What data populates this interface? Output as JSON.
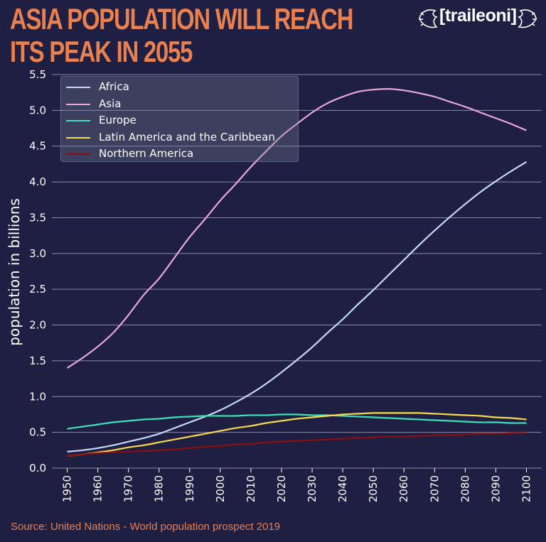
{
  "title": "ASIA POPULATION WILL REACH ITS PEAK IN 2055",
  "logo_text": "[traileoni]",
  "source": "Source: United Nations - World population prospect 2019",
  "colors": {
    "background": "#1e1f43",
    "title": "#e8804f",
    "grid": "#8a8ba6",
    "text": "#ffffff"
  },
  "chart_data": {
    "type": "line",
    "ylabel": "population in billions",
    "xlabel": "",
    "ylim": [
      0,
      5.5
    ],
    "xlim": [
      1945,
      2105
    ],
    "legend_position": "top-left",
    "grid": "horizontal",
    "x_ticks": [
      1950,
      1960,
      1970,
      1980,
      1990,
      2000,
      2010,
      2020,
      2030,
      2040,
      2050,
      2060,
      2070,
      2080,
      2090,
      2100
    ],
    "y_ticks": [
      "0.0",
      "0.5",
      "1.0",
      "1.5",
      "2.0",
      "2.5",
      "3.0",
      "3.5",
      "4.0",
      "4.5",
      "5.0",
      "5.5"
    ],
    "x": [
      1950,
      1955,
      1960,
      1965,
      1970,
      1975,
      1980,
      1985,
      1990,
      1995,
      2000,
      2005,
      2010,
      2015,
      2020,
      2025,
      2030,
      2035,
      2040,
      2045,
      2050,
      2055,
      2060,
      2065,
      2070,
      2075,
      2080,
      2085,
      2090,
      2095,
      2100
    ],
    "series": [
      {
        "name": "Africa",
        "color": "#c6d8f5",
        "values": [
          0.23,
          0.25,
          0.28,
          0.32,
          0.37,
          0.42,
          0.48,
          0.56,
          0.64,
          0.72,
          0.81,
          0.92,
          1.04,
          1.18,
          1.34,
          1.51,
          1.69,
          1.89,
          2.08,
          2.29,
          2.49,
          2.7,
          2.91,
          3.12,
          3.32,
          3.51,
          3.69,
          3.86,
          4.01,
          4.15,
          4.28
        ]
      },
      {
        "name": "Asia",
        "color": "#e8a8d8",
        "values": [
          1.4,
          1.54,
          1.7,
          1.89,
          2.14,
          2.42,
          2.65,
          2.94,
          3.23,
          3.48,
          3.74,
          3.97,
          4.21,
          4.43,
          4.64,
          4.81,
          4.97,
          5.1,
          5.19,
          5.26,
          5.29,
          5.3,
          5.28,
          5.24,
          5.19,
          5.12,
          5.05,
          4.97,
          4.89,
          4.81,
          4.72
        ]
      },
      {
        "name": "Europe",
        "color": "#3de0b8",
        "values": [
          0.55,
          0.58,
          0.61,
          0.64,
          0.66,
          0.68,
          0.69,
          0.71,
          0.72,
          0.73,
          0.73,
          0.73,
          0.74,
          0.74,
          0.75,
          0.75,
          0.74,
          0.74,
          0.73,
          0.72,
          0.71,
          0.7,
          0.69,
          0.68,
          0.67,
          0.66,
          0.65,
          0.64,
          0.64,
          0.63,
          0.63
        ]
      },
      {
        "name": "Latin America and the Caribbean",
        "color": "#f7d94c",
        "values": [
          0.17,
          0.19,
          0.22,
          0.25,
          0.29,
          0.32,
          0.36,
          0.4,
          0.44,
          0.48,
          0.52,
          0.56,
          0.59,
          0.63,
          0.66,
          0.69,
          0.71,
          0.73,
          0.75,
          0.76,
          0.77,
          0.77,
          0.77,
          0.77,
          0.76,
          0.75,
          0.74,
          0.73,
          0.71,
          0.7,
          0.68
        ]
      },
      {
        "name": "Northern America",
        "color": "#8b0f0f",
        "values": [
          0.17,
          0.19,
          0.21,
          0.22,
          0.23,
          0.24,
          0.25,
          0.26,
          0.28,
          0.3,
          0.31,
          0.33,
          0.34,
          0.36,
          0.37,
          0.38,
          0.39,
          0.4,
          0.41,
          0.42,
          0.43,
          0.44,
          0.44,
          0.45,
          0.46,
          0.46,
          0.47,
          0.48,
          0.48,
          0.49,
          0.49
        ]
      }
    ]
  }
}
